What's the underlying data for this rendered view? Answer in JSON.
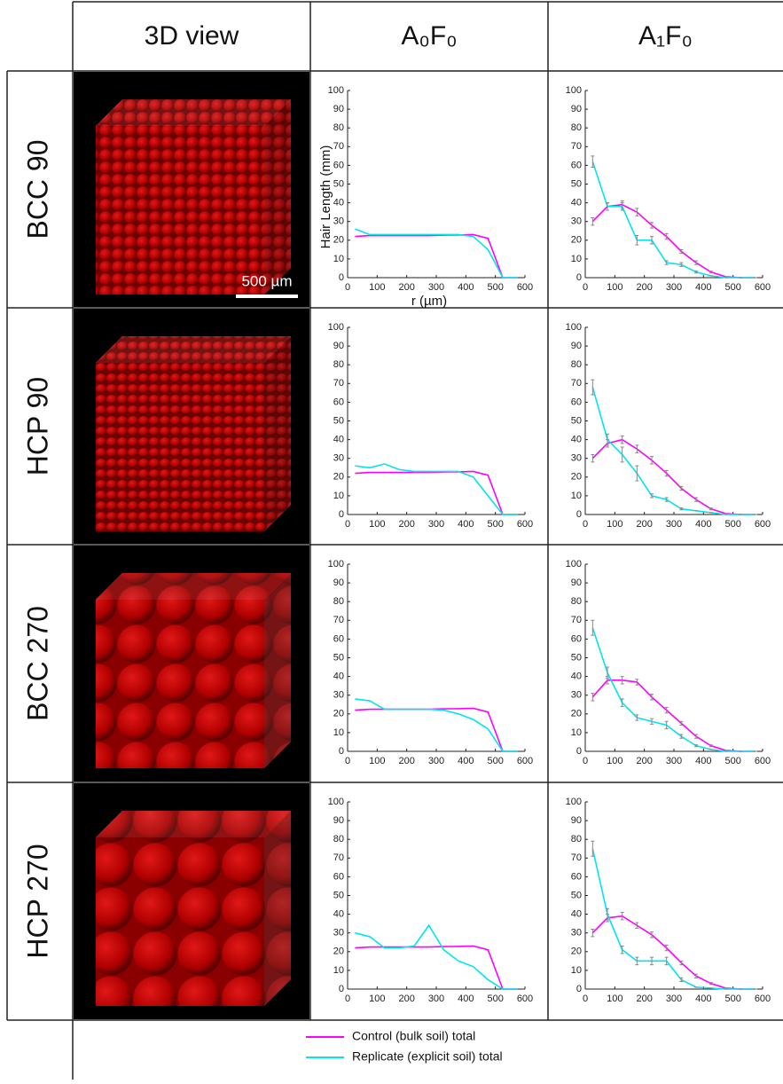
{
  "table": {
    "columns": [
      "3D view",
      "A₀F₀",
      "A₁F₀"
    ],
    "rows": [
      "BCC 90",
      "HCP 90",
      "BCC 270",
      "HCP 270"
    ]
  },
  "scale_bar": "500 µm",
  "legend": [
    "Control (bulk soil) total",
    "Replicate (explicit soil) total"
  ],
  "chart_data": [
    {
      "type": "line",
      "ylabel": "Hair Length (mm)",
      "xlabel": "r (µm)",
      "x": [
        25,
        75,
        125,
        175,
        225,
        275,
        325,
        375,
        425,
        475,
        525,
        575
      ],
      "series": [
        {
          "color": "#ff00ff",
          "values": [
            22,
            22.5,
            22.5,
            22.5,
            22.5,
            22.5,
            22.7,
            22.8,
            23,
            21,
            0,
            0
          ]
        },
        {
          "color": "#00e5ee",
          "values": [
            26,
            23,
            23,
            23,
            23,
            23,
            23,
            23,
            22,
            15,
            0,
            0
          ]
        }
      ],
      "xlim": [
        0,
        600
      ],
      "xticks": [
        0,
        100,
        200,
        300,
        400,
        500,
        600
      ],
      "ylim": [
        0,
        100
      ],
      "yticks": [
        0,
        10,
        20,
        30,
        40,
        50,
        60,
        70,
        80,
        90,
        100
      ]
    },
    {
      "type": "line",
      "x": [
        25,
        75,
        125,
        175,
        225,
        275,
        325,
        375,
        425,
        475,
        525,
        575
      ],
      "series": [
        {
          "color": "#ff00ff",
          "values": [
            30,
            38,
            39,
            35,
            28,
            22,
            14,
            8,
            3,
            0.5,
            0,
            0
          ],
          "errors": [
            2,
            2,
            2,
            2,
            1.5,
            1.5,
            1,
            1,
            0.5,
            0,
            0,
            0
          ]
        },
        {
          "color": "#00e5ee",
          "values": [
            62,
            38,
            38,
            20,
            20,
            8,
            7,
            3,
            1,
            0,
            0,
            0
          ],
          "errors": [
            3,
            2,
            2,
            2.5,
            2,
            1,
            1,
            0.5,
            0,
            0,
            0,
            0
          ]
        }
      ],
      "xlim": [
        0,
        600
      ],
      "xticks": [
        0,
        100,
        200,
        300,
        400,
        500,
        600
      ],
      "ylim": [
        0,
        100
      ],
      "yticks": [
        0,
        10,
        20,
        30,
        40,
        50,
        60,
        70,
        80,
        90,
        100
      ]
    },
    {
      "type": "line",
      "x": [
        25,
        75,
        125,
        175,
        225,
        275,
        325,
        375,
        425,
        475,
        525,
        575
      ],
      "series": [
        {
          "color": "#ff00ff",
          "values": [
            22,
            22.5,
            22.5,
            22.5,
            22.5,
            22.5,
            22.7,
            22.8,
            23,
            21,
            0,
            0
          ]
        },
        {
          "color": "#00e5ee",
          "values": [
            26,
            25,
            27,
            24,
            23,
            23,
            23,
            23,
            20,
            10,
            0,
            0
          ]
        }
      ],
      "xlim": [
        0,
        600
      ],
      "xticks": [
        0,
        100,
        200,
        300,
        400,
        500,
        600
      ],
      "ylim": [
        0,
        100
      ],
      "yticks": [
        0,
        10,
        20,
        30,
        40,
        50,
        60,
        70,
        80,
        90,
        100
      ]
    },
    {
      "type": "line",
      "x": [
        25,
        75,
        125,
        175,
        225,
        275,
        325,
        375,
        425,
        475,
        525,
        575
      ],
      "series": [
        {
          "color": "#ff00ff",
          "values": [
            30,
            38,
            40,
            35,
            29,
            22,
            14,
            8,
            3,
            0.5,
            0,
            0
          ],
          "errors": [
            2,
            2,
            2,
            2,
            2,
            1.5,
            1,
            1,
            0.5,
            0,
            0,
            0
          ]
        },
        {
          "color": "#00e5ee",
          "values": [
            68,
            40,
            32,
            22,
            10,
            8,
            3,
            2,
            1,
            0,
            0,
            0
          ],
          "errors": [
            4,
            3,
            4,
            4,
            1,
            1,
            0.5,
            0,
            0,
            0,
            0,
            0
          ]
        }
      ],
      "xlim": [
        0,
        600
      ],
      "xticks": [
        0,
        100,
        200,
        300,
        400,
        500,
        600
      ],
      "ylim": [
        0,
        100
      ],
      "yticks": [
        0,
        10,
        20,
        30,
        40,
        50,
        60,
        70,
        80,
        90,
        100
      ]
    },
    {
      "type": "line",
      "x": [
        25,
        75,
        125,
        175,
        225,
        275,
        325,
        375,
        425,
        475,
        525,
        575
      ],
      "series": [
        {
          "color": "#ff00ff",
          "values": [
            22,
            22.5,
            22.5,
            22.5,
            22.5,
            22.5,
            22.7,
            22.8,
            23,
            21,
            0,
            0
          ]
        },
        {
          "color": "#00e5ee",
          "values": [
            28,
            27,
            22.5,
            22.5,
            22.5,
            22.5,
            22,
            20,
            17,
            12,
            0,
            0
          ]
        }
      ],
      "xlim": [
        0,
        600
      ],
      "xticks": [
        0,
        100,
        200,
        300,
        400,
        500,
        600
      ],
      "ylim": [
        0,
        100
      ],
      "yticks": [
        0,
        10,
        20,
        30,
        40,
        50,
        60,
        70,
        80,
        90,
        100
      ]
    },
    {
      "type": "line",
      "x": [
        25,
        75,
        125,
        175,
        225,
        275,
        325,
        375,
        425,
        475,
        525,
        575
      ],
      "series": [
        {
          "color": "#ff00ff",
          "values": [
            29,
            38,
            38,
            37,
            29,
            22,
            15,
            8,
            3,
            0.5,
            0,
            0
          ],
          "errors": [
            2,
            2,
            2,
            1.5,
            1.5,
            1.5,
            1,
            1,
            0.5,
            0,
            0,
            0
          ]
        },
        {
          "color": "#00e5ee",
          "values": [
            66,
            42,
            26,
            18,
            16,
            14,
            8,
            3,
            1,
            0,
            0,
            0
          ],
          "errors": [
            4,
            3,
            2,
            1.5,
            1.5,
            2,
            1,
            0.5,
            0,
            0,
            0,
            0
          ]
        }
      ],
      "xlim": [
        0,
        600
      ],
      "xticks": [
        0,
        100,
        200,
        300,
        400,
        500,
        600
      ],
      "ylim": [
        0,
        100
      ],
      "yticks": [
        0,
        10,
        20,
        30,
        40,
        50,
        60,
        70,
        80,
        90,
        100
      ]
    },
    {
      "type": "line",
      "x": [
        25,
        75,
        125,
        175,
        225,
        275,
        325,
        375,
        425,
        475,
        525,
        575
      ],
      "series": [
        {
          "color": "#ff00ff",
          "values": [
            22,
            22.5,
            22.5,
            22.5,
            22.5,
            22.5,
            22.7,
            22.8,
            23,
            21,
            0,
            0
          ]
        },
        {
          "color": "#00e5ee",
          "values": [
            30,
            28,
            22,
            22,
            23,
            34,
            21,
            15,
            12,
            5,
            0,
            0
          ]
        }
      ],
      "xlim": [
        0,
        600
      ],
      "xticks": [
        0,
        100,
        200,
        300,
        400,
        500,
        600
      ],
      "ylim": [
        0,
        100
      ],
      "yticks": [
        0,
        10,
        20,
        30,
        40,
        50,
        60,
        70,
        80,
        90,
        100
      ]
    },
    {
      "type": "line",
      "x": [
        25,
        75,
        125,
        175,
        225,
        275,
        325,
        375,
        425,
        475,
        525,
        575
      ],
      "series": [
        {
          "color": "#ff00ff",
          "values": [
            30,
            38,
            39,
            34,
            29,
            22,
            14,
            7,
            3,
            0.5,
            0,
            0
          ],
          "errors": [
            2,
            2,
            2,
            1.5,
            1.5,
            1.5,
            1,
            1,
            0.5,
            0,
            0,
            0
          ]
        },
        {
          "color": "#00e5ee",
          "values": [
            75,
            40,
            21,
            15,
            15,
            15,
            5,
            1,
            0.5,
            0,
            0,
            0
          ],
          "errors": [
            4,
            3,
            2,
            2,
            2,
            2,
            1,
            0,
            0,
            0,
            0,
            0
          ]
        }
      ],
      "xlim": [
        0,
        600
      ],
      "xticks": [
        0,
        100,
        200,
        300,
        400,
        500,
        600
      ],
      "ylim": [
        0,
        100
      ],
      "yticks": [
        0,
        10,
        20,
        30,
        40,
        50,
        60,
        70,
        80,
        90,
        100
      ]
    }
  ]
}
